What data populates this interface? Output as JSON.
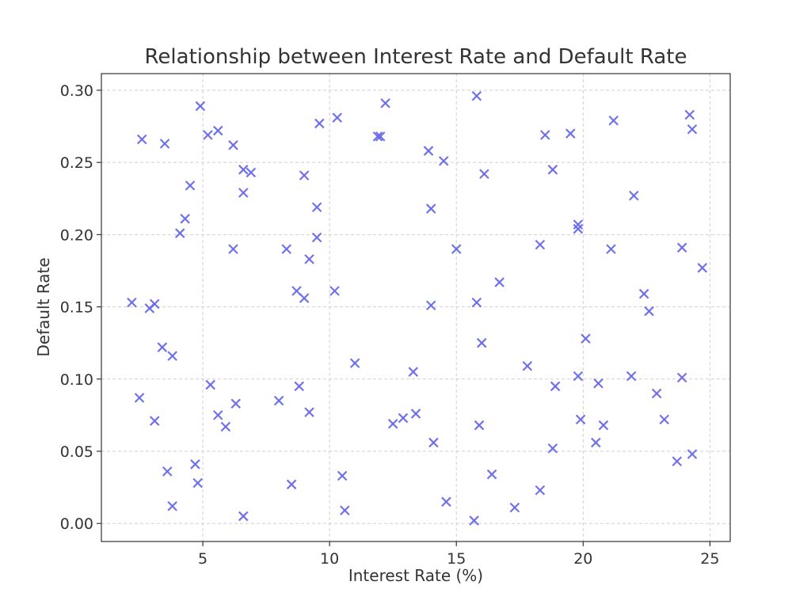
{
  "chart_data": {
    "type": "scatter",
    "title": "Relationship between Interest Rate and Default Rate",
    "xlabel": "Interest Rate (%)",
    "ylabel": "Default Rate",
    "xlim": [
      1.0,
      25.8
    ],
    "ylim": [
      -0.0125,
      0.3115
    ],
    "x_ticks": [
      5,
      10,
      15,
      20,
      25
    ],
    "x_tick_labels": [
      "5",
      "10",
      "15",
      "20",
      "25"
    ],
    "y_ticks": [
      0.0,
      0.05,
      0.1,
      0.15,
      0.2,
      0.25,
      0.3
    ],
    "y_tick_labels": [
      "0.00",
      "0.05",
      "0.10",
      "0.15",
      "0.20",
      "0.25",
      "0.30"
    ],
    "grid": true,
    "marker": "x",
    "color": "#6b6be8",
    "points": [
      [
        2.2,
        0.153
      ],
      [
        2.6,
        0.266
      ],
      [
        2.5,
        0.087
      ],
      [
        2.9,
        0.149
      ],
      [
        3.1,
        0.152
      ],
      [
        3.1,
        0.071
      ],
      [
        3.4,
        0.122
      ],
      [
        3.5,
        0.263
      ],
      [
        3.6,
        0.036
      ],
      [
        3.8,
        0.116
      ],
      [
        3.8,
        0.012
      ],
      [
        4.1,
        0.201
      ],
      [
        4.3,
        0.211
      ],
      [
        4.5,
        0.234
      ],
      [
        4.7,
        0.041
      ],
      [
        4.8,
        0.028
      ],
      [
        4.9,
        0.289
      ],
      [
        5.2,
        0.269
      ],
      [
        5.3,
        0.096
      ],
      [
        5.6,
        0.272
      ],
      [
        5.6,
        0.075
      ],
      [
        5.9,
        0.067
      ],
      [
        6.2,
        0.262
      ],
      [
        6.2,
        0.19
      ],
      [
        6.3,
        0.083
      ],
      [
        6.6,
        0.245
      ],
      [
        6.6,
        0.229
      ],
      [
        6.9,
        0.243
      ],
      [
        6.6,
        0.005
      ],
      [
        8.0,
        0.085
      ],
      [
        8.3,
        0.19
      ],
      [
        8.5,
        0.027
      ],
      [
        8.7,
        0.161
      ],
      [
        8.8,
        0.095
      ],
      [
        9.0,
        0.241
      ],
      [
        9.0,
        0.156
      ],
      [
        9.2,
        0.183
      ],
      [
        9.2,
        0.077
      ],
      [
        9.5,
        0.219
      ],
      [
        9.5,
        0.198
      ],
      [
        9.6,
        0.277
      ],
      [
        10.3,
        0.281
      ],
      [
        10.2,
        0.161
      ],
      [
        10.5,
        0.033
      ],
      [
        10.6,
        0.009
      ],
      [
        11.0,
        0.111
      ],
      [
        11.9,
        0.268
      ],
      [
        12.0,
        0.268
      ],
      [
        12.2,
        0.291
      ],
      [
        12.5,
        0.069
      ],
      [
        12.9,
        0.073
      ],
      [
        13.3,
        0.105
      ],
      [
        13.4,
        0.076
      ],
      [
        13.9,
        0.258
      ],
      [
        14.0,
        0.151
      ],
      [
        14.0,
        0.218
      ],
      [
        14.1,
        0.056
      ],
      [
        14.5,
        0.251
      ],
      [
        14.6,
        0.015
      ],
      [
        15.0,
        0.19
      ],
      [
        15.7,
        0.002
      ],
      [
        15.8,
        0.296
      ],
      [
        15.8,
        0.153
      ],
      [
        15.9,
        0.068
      ],
      [
        16.0,
        0.125
      ],
      [
        16.1,
        0.242
      ],
      [
        16.4,
        0.034
      ],
      [
        16.7,
        0.167
      ],
      [
        17.3,
        0.011
      ],
      [
        17.8,
        0.109
      ],
      [
        18.3,
        0.193
      ],
      [
        18.3,
        0.023
      ],
      [
        18.5,
        0.269
      ],
      [
        18.8,
        0.245
      ],
      [
        18.8,
        0.052
      ],
      [
        18.9,
        0.095
      ],
      [
        19.5,
        0.27
      ],
      [
        19.8,
        0.207
      ],
      [
        19.8,
        0.204
      ],
      [
        19.8,
        0.102
      ],
      [
        19.9,
        0.072
      ],
      [
        20.1,
        0.128
      ],
      [
        20.5,
        0.056
      ],
      [
        20.6,
        0.097
      ],
      [
        20.8,
        0.068
      ],
      [
        21.1,
        0.19
      ],
      [
        21.2,
        0.279
      ],
      [
        21.9,
        0.102
      ],
      [
        22.0,
        0.227
      ],
      [
        22.4,
        0.159
      ],
      [
        22.6,
        0.147
      ],
      [
        22.9,
        0.09
      ],
      [
        23.2,
        0.072
      ],
      [
        23.7,
        0.043
      ],
      [
        23.9,
        0.101
      ],
      [
        23.9,
        0.191
      ],
      [
        24.2,
        0.283
      ],
      [
        24.3,
        0.273
      ],
      [
        24.3,
        0.048
      ],
      [
        24.7,
        0.177
      ]
    ]
  }
}
